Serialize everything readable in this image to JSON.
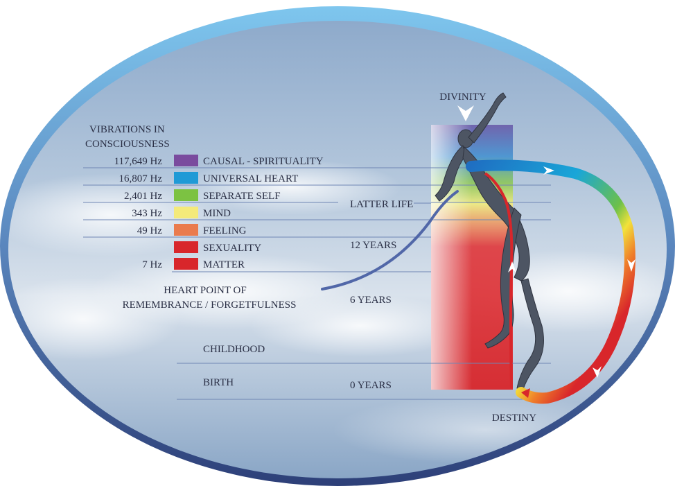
{
  "top_label": "DIVINITY",
  "bottom_label": "DESTINY",
  "vibrations_header": [
    "VIBRATIONS IN",
    "CONSCIOUSNESS"
  ],
  "levels": [
    {
      "freq": "117,649 Hz",
      "name": "CAUSAL - SPIRITUALITY",
      "color": "#7a4b9e"
    },
    {
      "freq": "16,807 Hz",
      "name": "UNIVERSAL HEART",
      "color": "#1f9ad6"
    },
    {
      "freq": "2,401 Hz",
      "name": "SEPARATE SELF",
      "color": "#7cc242"
    },
    {
      "freq": "343 Hz",
      "name": "MIND",
      "color": "#f4ea7a"
    },
    {
      "freq": "49 Hz",
      "name": "FEELING",
      "color": "#ea7b4d"
    },
    {
      "freq": "",
      "name": "SEXUALITY",
      "color": "#d8262b"
    },
    {
      "freq": "7 Hz",
      "name": "MATTER",
      "color": "#d8262b"
    }
  ],
  "heart_point": [
    "HEART POINT OF",
    "REMEMBRANCE / FORGETFULNESS"
  ],
  "life_stages": {
    "latter_life": "LATTER LIFE",
    "twelve_years": "12 YEARS",
    "six_years": "6 YEARS",
    "childhood": "CHILDHOOD",
    "birth": "BIRTH",
    "zero_years": "0 YEARS"
  },
  "colors": {
    "frame": "#5a7fb3",
    "sky": "#9fb6d3",
    "text": "#2a2f45",
    "line": "#6f86b4",
    "curve": "#5167a8"
  }
}
